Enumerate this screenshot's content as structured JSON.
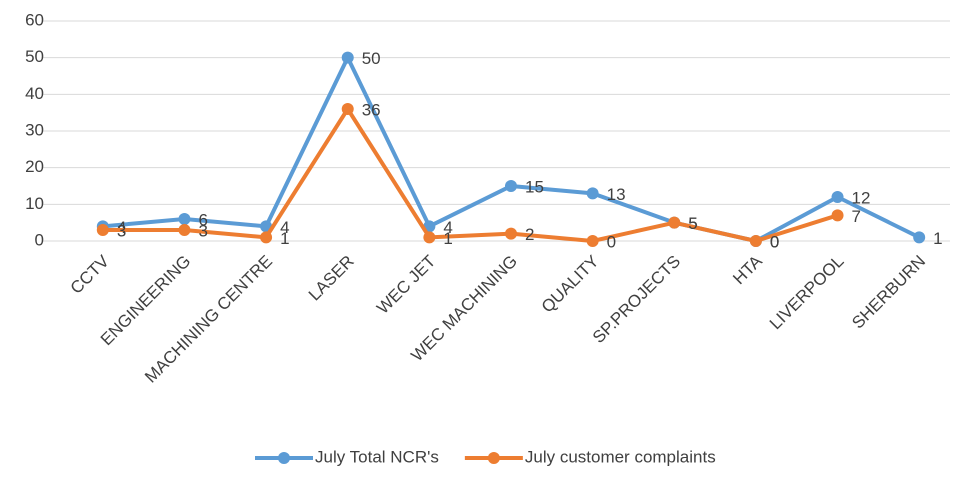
{
  "chart_data": {
    "type": "line",
    "categories": [
      "CCTV",
      "ENGINEERING",
      "MACHINING CENTRE",
      "LASER",
      "WEC JET",
      "WEC MACHINING",
      "QUALITY",
      "SP.PROJECTS",
      "HTA",
      "LIVERPOOL",
      "SHERBURN"
    ],
    "series": [
      {
        "name": "July Total NCR's",
        "color": "#5b9bd5",
        "values": [
          4,
          6,
          4,
          50,
          4,
          15,
          13,
          5,
          0,
          12,
          1
        ]
      },
      {
        "name": "July customer complaints",
        "color": "#ed7d31",
        "values": [
          3,
          3,
          1,
          36,
          1,
          2,
          0,
          5,
          0,
          7,
          null
        ]
      }
    ],
    "ylim": [
      0,
      60
    ],
    "yticks": [
      0,
      10,
      20,
      30,
      40,
      50,
      60
    ],
    "grid": true,
    "legend": "bottom"
  }
}
